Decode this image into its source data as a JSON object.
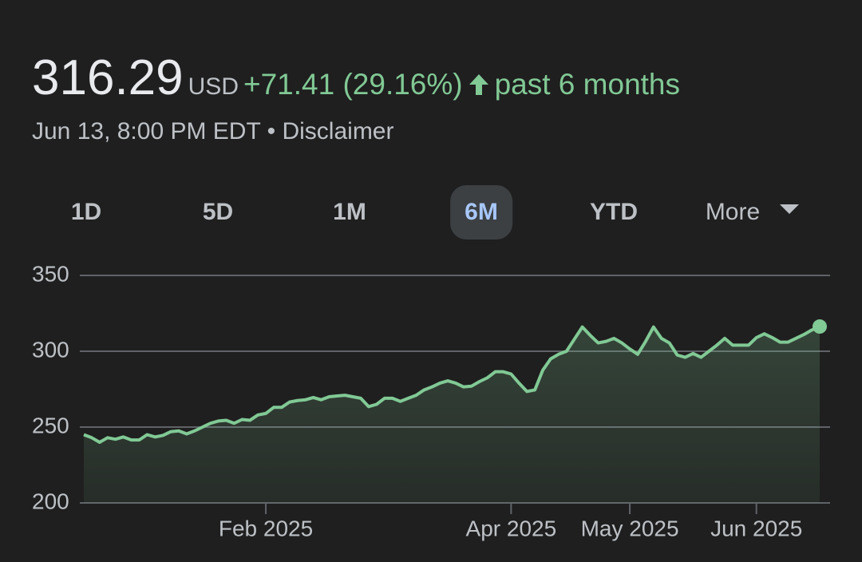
{
  "header": {
    "price": "316.29",
    "currency": "USD",
    "change": "+71.41 (29.16%)",
    "period": "past 6 months",
    "timestamp": "Jun 13, 8:00 PM EDT",
    "separator": "•",
    "disclaimer": "Disclaimer"
  },
  "ranges": [
    "1D",
    "5D",
    "1M",
    "6M",
    "YTD",
    "More"
  ],
  "selected_range": "6M",
  "chart_data": {
    "type": "line",
    "fill": true,
    "color": "#81c995",
    "categories": [
      null,
      null,
      null,
      null,
      null,
      null,
      null,
      null,
      null,
      null,
      null,
      null,
      null,
      null,
      null,
      null,
      null,
      null,
      null,
      null,
      null,
      null,
      null,
      "Feb 2025",
      null,
      null,
      null,
      null,
      null,
      null,
      null,
      null,
      null,
      null,
      null,
      null,
      null,
      null,
      null,
      null,
      null,
      null,
      null,
      null,
      null,
      null,
      null,
      null,
      null,
      null,
      null,
      null,
      null,
      null,
      "Apr 2025",
      null,
      null,
      null,
      null,
      null,
      null,
      null,
      null,
      null,
      null,
      null,
      null,
      null,
      null,
      "May 2025",
      null,
      null,
      null,
      null,
      null,
      null,
      null,
      null,
      null,
      null,
      null,
      null,
      null,
      null,
      null,
      "Jun 2025",
      null,
      null,
      null,
      null,
      null,
      null,
      null,
      null
    ],
    "values": [
      245,
      243,
      240,
      243,
      242,
      243.5,
      241.5,
      241.5,
      245,
      243.5,
      244.5,
      247,
      247.5,
      245.5,
      247.5,
      250,
      252.5,
      254,
      254.5,
      252.5,
      255,
      254.5,
      258,
      259,
      263,
      263,
      266.5,
      267.5,
      268,
      269.5,
      268,
      270,
      270.5,
      271,
      270,
      269,
      263.5,
      265,
      269,
      269,
      267,
      269,
      271,
      274.5,
      276.5,
      279,
      280.5,
      279,
      276.5,
      277,
      280,
      282.5,
      286.5,
      286.5,
      285,
      279,
      273.5,
      274.5,
      287.5,
      295,
      298,
      300,
      308,
      316,
      310.5,
      305.5,
      306.5,
      308.5,
      305.5,
      301.5,
      298,
      306.5,
      316,
      308.5,
      305.5,
      297.5,
      296,
      298.5,
      296,
      300,
      304,
      308.5,
      304,
      304,
      304,
      309,
      311.5,
      309,
      306,
      306,
      308.5,
      311,
      314,
      316.29
    ],
    "ylim": [
      200,
      350
    ],
    "yticks": [
      200,
      250,
      300,
      350
    ],
    "grid": true
  }
}
